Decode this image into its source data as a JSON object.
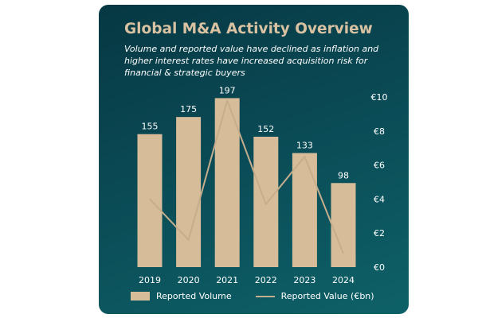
{
  "chart_data": {
    "type": "bar",
    "title": "Global M&A Activity Overview",
    "subtitle": "Volume and reported value have declined as inflation and higher interest rates have increased acquisition risk for financial & strategic buyers",
    "categories": [
      "2019",
      "2020",
      "2021",
      "2022",
      "2023",
      "2024"
    ],
    "series": [
      {
        "name": "Reported Volume",
        "type": "bar",
        "values": [
          155,
          175,
          197,
          152,
          133,
          98
        ],
        "data_labels": [
          "155",
          "175",
          "197",
          "152",
          "133",
          "98"
        ],
        "color": "#d6bc98"
      },
      {
        "name": "Reported Value (€bn)",
        "type": "line",
        "axis": "right",
        "values": [
          4.0,
          1.6,
          9.8,
          3.7,
          6.5,
          0.8
        ],
        "color": "#c6ae8d"
      }
    ],
    "y_right": {
      "ticks": [
        "€0",
        "€2",
        "€4",
        "€6",
        "€8",
        "€10"
      ],
      "range": [
        0,
        10
      ]
    },
    "y_left": {
      "range": [
        0,
        215
      ],
      "visible": false
    },
    "grid": false,
    "legend": "bottom",
    "colors": {
      "background": "#063843",
      "accent": "#d9c2a2",
      "text": "#ffffff"
    }
  }
}
